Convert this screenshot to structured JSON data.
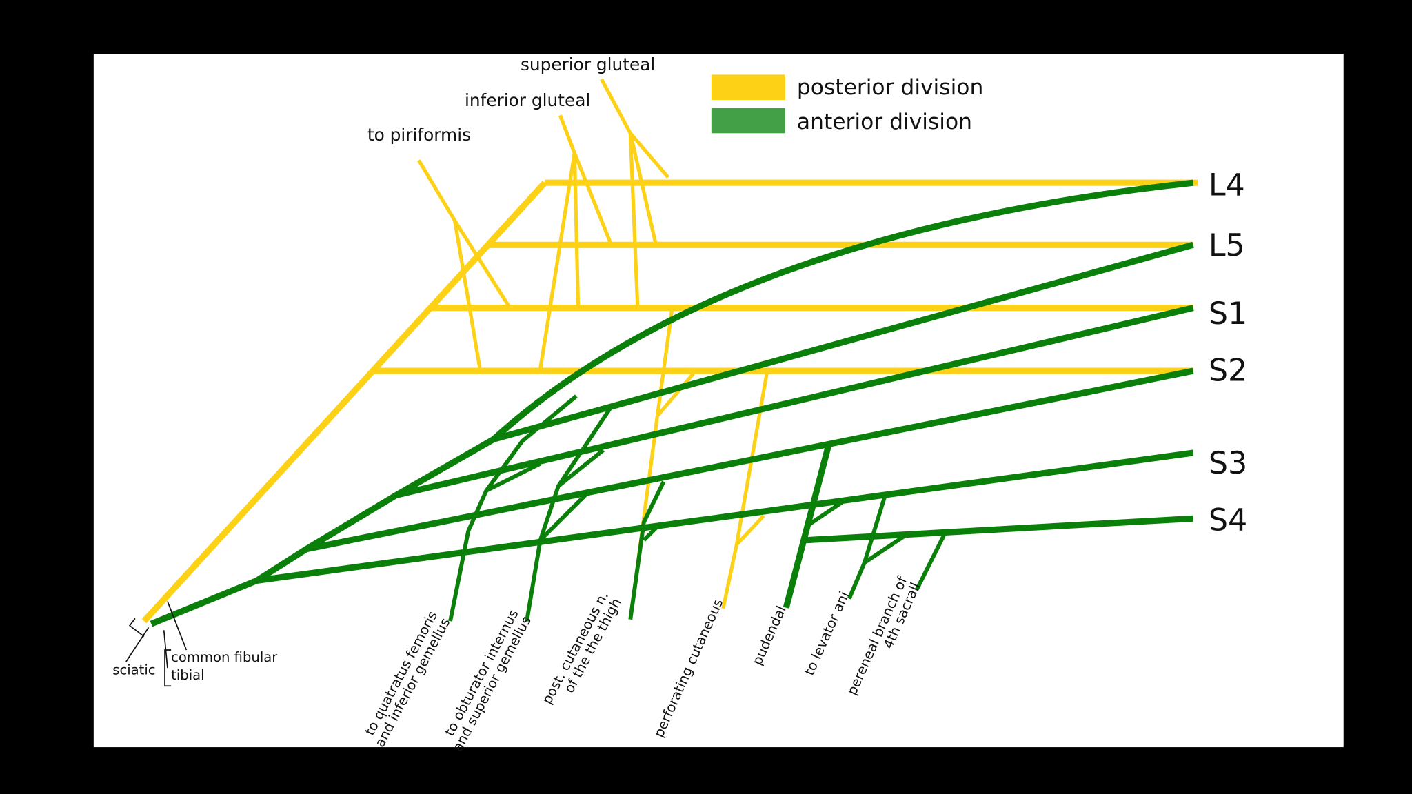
{
  "legend": {
    "items": [
      "posterior division",
      "anterior division"
    ]
  },
  "roots": [
    "L4",
    "L5",
    "S1",
    "S2",
    "S3",
    "S4"
  ],
  "top_branches": [
    "superior gluteal",
    "inferior gluteal",
    "to piriformis"
  ],
  "bottom_branches": [
    {
      "lines": [
        "to quatratus femoris",
        "and inferior gemellus"
      ]
    },
    {
      "lines": [
        "to obturator internus",
        "and superior gemellus"
      ]
    },
    {
      "lines": [
        "post. cutaneous n.",
        "of the the thigh"
      ]
    },
    {
      "lines": [
        "perforating cutaneous"
      ]
    },
    {
      "lines": [
        "pudendal"
      ]
    },
    {
      "lines": [
        "to levator ani"
      ]
    },
    {
      "lines": [
        "pereneal branch of",
        "4th sacrall"
      ]
    }
  ],
  "trunk_labels": {
    "sciatic": "sciatic",
    "common_fibular": "common fibular",
    "tibial": "tibial"
  }
}
